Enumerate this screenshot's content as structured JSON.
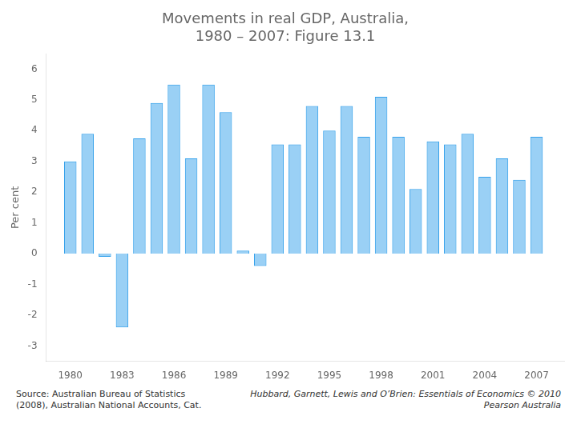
{
  "chart_data": {
    "type": "bar",
    "title": "Movements in real GDP, Australia,\n1980 – 2007: Figure 13.1",
    "y_label": "Per cent",
    "x": [
      1980,
      1981,
      1982,
      1983,
      1984,
      1985,
      1986,
      1987,
      1988,
      1989,
      1990,
      1991,
      1992,
      1993,
      1994,
      1995,
      1996,
      1997,
      1998,
      1999,
      2000,
      2001,
      2002,
      2003,
      2004,
      2005,
      2006,
      2007
    ],
    "values": [
      3.0,
      3.9,
      -0.1,
      -2.4,
      3.75,
      4.9,
      5.5,
      3.1,
      5.5,
      4.6,
      0.1,
      -0.4,
      3.55,
      3.55,
      4.8,
      4.0,
      4.8,
      3.8,
      5.1,
      3.8,
      2.1,
      3.65,
      3.55,
      3.9,
      2.5,
      3.1,
      2.4,
      3.8
    ],
    "xlim": [
      1978.6,
      2008.6
    ],
    "xticks": [
      1980,
      1983,
      1986,
      1989,
      1992,
      1995,
      1998,
      2001,
      2004,
      2007
    ],
    "ylim": [
      -3.5,
      6.5
    ],
    "yticks": [
      -3,
      -2,
      -1,
      0,
      1,
      2,
      3,
      4,
      5,
      6
    ],
    "grid": false,
    "annotations": [
      "Source: Australian Bureau of Statistics\n(2008), Australian National Accounts, Cat.",
      "Hubbard, Garnett, Lewis and O’Brien: Essentials of Economics © 2010 Pearson Australia"
    ]
  }
}
